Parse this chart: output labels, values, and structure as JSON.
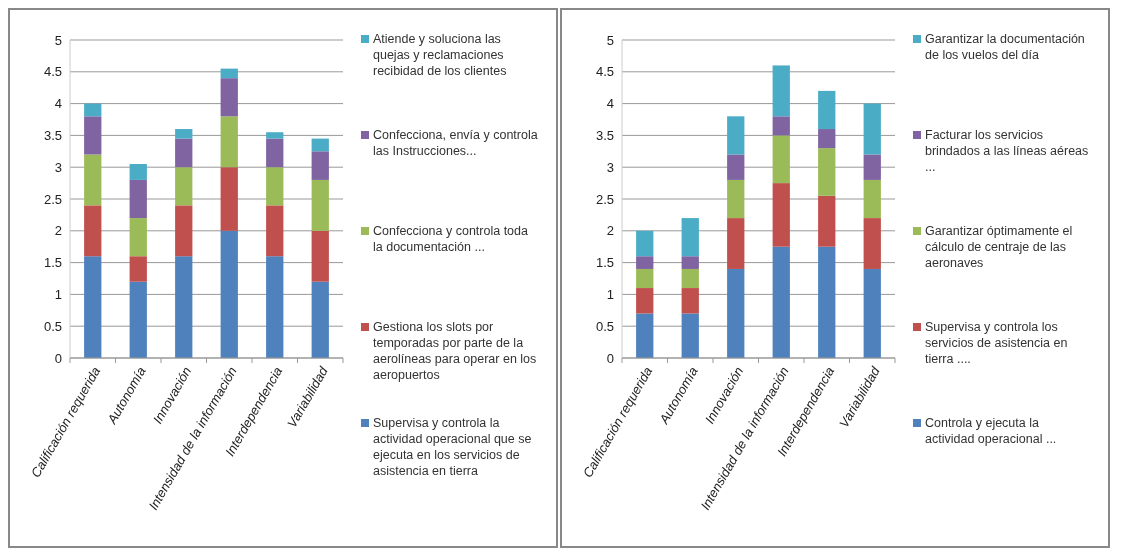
{
  "chart_data": [
    {
      "type": "bar",
      "stacked": true,
      "categories": [
        "Calificación requerida",
        "Autonomía",
        "Innovación",
        "Intensidad de la información",
        "Interdependencia",
        "Variabilidad"
      ],
      "ylim": [
        0,
        5
      ],
      "yticks": [
        0,
        0.5,
        1,
        1.5,
        2,
        2.5,
        3,
        3.5,
        4,
        4.5,
        5
      ],
      "grid": "y",
      "legend": "right",
      "series": [
        {
          "name": "Supervisa y controla la actividad operacional que se ejecuta en los servicios de asistencia en tierra",
          "color": "#4f81bd",
          "values": [
            1.6,
            1.2,
            1.6,
            2.0,
            1.6,
            1.2
          ]
        },
        {
          "name": "Gestiona los slots por temporadas por parte de la aerolíneas para operar en los aeropuertos",
          "color": "#c0504d",
          "values": [
            0.8,
            0.4,
            0.8,
            1.0,
            0.8,
            0.8
          ]
        },
        {
          "name": "Confecciona y controla toda la documentación ...",
          "color": "#9bbb59",
          "values": [
            0.8,
            0.6,
            0.6,
            0.8,
            0.6,
            0.8
          ]
        },
        {
          "name": "Confecciona, envía y controla las Instrucciones...",
          "color": "#8064a2",
          "values": [
            0.6,
            0.6,
            0.45,
            0.6,
            0.45,
            0.45
          ]
        },
        {
          "name": "Atiende y soluciona las quejas y reclamaciones recibidad de los clientes",
          "color": "#4bacc6",
          "values": [
            0.2,
            0.25,
            0.15,
            0.15,
            0.1,
            0.2
          ]
        }
      ]
    },
    {
      "type": "bar",
      "stacked": true,
      "categories": [
        "Calificación requerida",
        "Autonomía",
        "Innovación",
        "Intensidad de la información",
        "Interdependencia",
        "Variabilidad"
      ],
      "ylim": [
        0,
        5
      ],
      "yticks": [
        0,
        0.5,
        1,
        1.5,
        2,
        2.5,
        3,
        3.5,
        4,
        4.5,
        5
      ],
      "grid": "y",
      "legend": "right",
      "series": [
        {
          "name": "Controla y ejecuta la actividad operacional ...",
          "color": "#4f81bd",
          "values": [
            0.7,
            0.7,
            1.4,
            1.75,
            1.75,
            1.4
          ]
        },
        {
          "name": "Supervisa y controla los servicios de asistencia en tierra ....",
          "color": "#c0504d",
          "values": [
            0.4,
            0.4,
            0.8,
            1.0,
            0.8,
            0.8
          ]
        },
        {
          "name": "Garantizar óptimamente el cálculo de centraje de las aeronaves",
          "color": "#9bbb59",
          "values": [
            0.3,
            0.3,
            0.6,
            0.75,
            0.75,
            0.6
          ]
        },
        {
          "name": "Facturar los servicios brindados a las líneas aéreas ...",
          "color": "#8064a2",
          "values": [
            0.2,
            0.2,
            0.4,
            0.3,
            0.3,
            0.4
          ]
        },
        {
          "name": "Garantizar la documentación de los vuelos del día",
          "color": "#4bacc6",
          "values": [
            0.4,
            0.6,
            0.6,
            0.8,
            0.6,
            0.8
          ]
        }
      ]
    }
  ]
}
